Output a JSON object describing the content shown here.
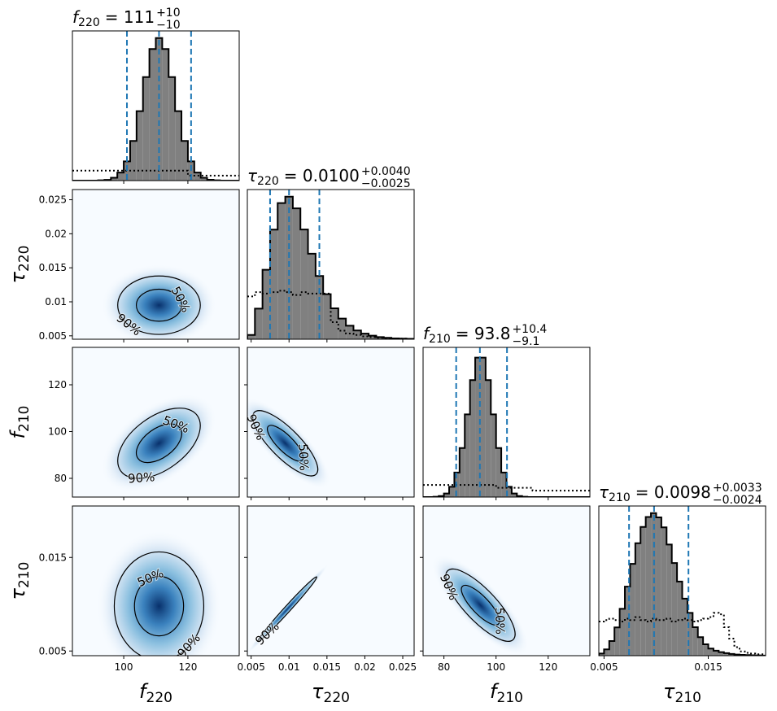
{
  "chart_data": {
    "type": "corner",
    "hist_color": "#808080",
    "line_color": "#1f77b4",
    "cmap": [
      "#f7fbff",
      "#c6dbef",
      "#6baed6",
      "#2171b5",
      "#08306b"
    ],
    "hist_ylim": [
      0,
      1.05
    ],
    "params": [
      {
        "symbol": "f",
        "sub": "220",
        "lim": [
          84,
          136
        ],
        "ticks": [
          100,
          120
        ],
        "title": {
          "body": "= 111",
          "plus": "+10",
          "minus": "−10"
        },
        "quantiles": [
          101,
          111,
          121
        ]
      },
      {
        "symbol": "τ",
        "sub": "220",
        "lim": [
          0.0045,
          0.0265
        ],
        "ticks": [
          0.005,
          0.01,
          0.015,
          0.02,
          0.025
        ],
        "title": {
          "body": "= 0.0100",
          "plus": "+0.0040",
          "minus": "−0.0025"
        },
        "quantiles": [
          0.0075,
          0.01,
          0.014
        ]
      },
      {
        "symbol": "f",
        "sub": "210",
        "lim": [
          72,
          136
        ],
        "ticks": [
          80,
          100,
          120
        ],
        "title": {
          "body": "= 93.8",
          "plus": "+10.4",
          "minus": "−9.1"
        },
        "quantiles": [
          84.7,
          93.8,
          104.2
        ]
      },
      {
        "symbol": "τ",
        "sub": "210",
        "lim": [
          0.0045,
          0.0205
        ],
        "ticks": [
          0.005,
          0.015
        ],
        "title": {
          "body": "= 0.0098",
          "plus": "+0.0033",
          "minus": "−0.0024"
        },
        "quantiles": [
          0.0074,
          0.0098,
          0.0131
        ]
      }
    ],
    "histograms": [
      {
        "bins": [
          84,
          86,
          88,
          90,
          92,
          94,
          96,
          98,
          100,
          102,
          104,
          106,
          108,
          110,
          112,
          114,
          116,
          118,
          120,
          122,
          124,
          126,
          128,
          130,
          132,
          134,
          136
        ],
        "counts": [
          0,
          0,
          0,
          0,
          0.002,
          0.005,
          0.02,
          0.056,
          0.135,
          0.278,
          0.487,
          0.726,
          0.923,
          1,
          0.923,
          0.726,
          0.487,
          0.278,
          0.135,
          0.056,
          0.02,
          0.006,
          0.002,
          0,
          0,
          0
        ],
        "prior": [
          0.07,
          0.07,
          0.07,
          0.07,
          0.07,
          0.07,
          0.07,
          0.07,
          0.07,
          0.07,
          0.07,
          0.07,
          0.07,
          0.07,
          0.07,
          0.07,
          0.07,
          0.07,
          0.035,
          0.035,
          0.035,
          0.035,
          0.035,
          0.035,
          0.035,
          0.035
        ]
      },
      {
        "bins": [
          0.0045,
          0.0055,
          0.0065,
          0.0075,
          0.0085,
          0.0095,
          0.0105,
          0.0115,
          0.0125,
          0.0135,
          0.0145,
          0.0155,
          0.0165,
          0.0175,
          0.0185,
          0.0195,
          0.0205,
          0.0215,
          0.0225,
          0.0235,
          0.0245,
          0.0255,
          0.0265
        ],
        "counts": [
          0.03,
          0.215,
          0.487,
          0.769,
          0.955,
          1,
          0.918,
          0.77,
          0.6,
          0.444,
          0.316,
          0.217,
          0.145,
          0.095,
          0.061,
          0.039,
          0.025,
          0.015,
          0.01,
          0.006,
          0.004,
          0.003
        ],
        "prior": [
          0.3,
          0.33,
          0.32,
          0.33,
          0.34,
          0.33,
          0.31,
          0.33,
          0.32,
          0.32,
          0.32,
          0.12,
          0.06,
          0.04,
          0.03,
          0.02,
          0.015,
          0.01,
          0.008,
          0.005,
          0.004,
          0.003
        ]
      },
      {
        "bins": [
          72,
          74,
          76,
          78,
          80,
          82,
          84,
          86,
          88,
          90,
          92,
          94,
          96,
          98,
          100,
          102,
          104,
          106,
          108,
          110,
          112,
          114,
          116,
          118,
          120,
          122,
          124,
          126,
          128,
          130,
          132,
          134,
          136
        ],
        "counts": [
          0,
          0,
          0.002,
          0.007,
          0.025,
          0.072,
          0.172,
          0.344,
          0.58,
          0.82,
          0.978,
          0.978,
          0.82,
          0.58,
          0.344,
          0.172,
          0.072,
          0.025,
          0.007,
          0.002,
          0,
          0,
          0,
          0,
          0,
          0,
          0,
          0,
          0,
          0,
          0,
          0
        ],
        "prior": [
          0.085,
          0.085,
          0.085,
          0.085,
          0.085,
          0.085,
          0.085,
          0.085,
          0.085,
          0.085,
          0.085,
          0.085,
          0.085,
          0.085,
          0.065,
          0.065,
          0.065,
          0.065,
          0.065,
          0.065,
          0.065,
          0.045,
          0.045,
          0.045,
          0.045,
          0.045,
          0.045,
          0.045,
          0.045,
          0.045,
          0.045,
          0.045
        ]
      },
      {
        "bins": [
          0.0045,
          0.005,
          0.0055,
          0.006,
          0.0065,
          0.007,
          0.0075,
          0.008,
          0.0085,
          0.009,
          0.0095,
          0.01,
          0.0105,
          0.011,
          0.0115,
          0.012,
          0.0125,
          0.013,
          0.0135,
          0.014,
          0.0145,
          0.015,
          0.0155,
          0.016,
          0.0165,
          0.017,
          0.0175,
          0.018,
          0.0185,
          0.019,
          0.0195,
          0.02,
          0.0205
        ],
        "counts": [
          0.015,
          0.044,
          0.103,
          0.198,
          0.329,
          0.484,
          0.644,
          0.789,
          0.903,
          0.973,
          1,
          0.97,
          0.9,
          0.78,
          0.65,
          0.52,
          0.4,
          0.3,
          0.2,
          0.13,
          0.08,
          0.05,
          0.035,
          0.025,
          0.018,
          0.012,
          0.008,
          0.006,
          0.004,
          0.003,
          0.002,
          0.001
        ],
        "prior": [
          0.24,
          0.25,
          0.26,
          0.25,
          0.24,
          0.26,
          0.25,
          0.27,
          0.25,
          0.24,
          0.26,
          0.25,
          0.25,
          0.26,
          0.24,
          0.25,
          0.26,
          0.25,
          0.24,
          0.25,
          0.26,
          0.27,
          0.3,
          0.29,
          0.2,
          0.12,
          0.06,
          0.03,
          0.02,
          0.015,
          0.01,
          0.01
        ]
      }
    ],
    "pairs": [
      {
        "x": 0,
        "y": 1,
        "mean": [
          111,
          0.0095
        ],
        "sd": [
          6,
          0.002
        ],
        "corr": 0,
        "levels": [
          {
            "value": 50,
            "label": "50%"
          },
          {
            "value": 90,
            "label": "90%"
          }
        ]
      },
      {
        "x": 0,
        "y": 2,
        "mean": [
          111,
          95
        ],
        "sd": [
          6,
          7
        ],
        "corr": 0.5,
        "levels": [
          {
            "value": 50,
            "label": "50%"
          },
          {
            "value": 90,
            "label": "90%"
          }
        ]
      },
      {
        "x": 0,
        "y": 3,
        "mean": [
          111,
          0.0098
        ],
        "sd": [
          6.5,
          0.0027
        ],
        "corr": 0,
        "levels": [
          {
            "value": 50,
            "label": "50%"
          },
          {
            "value": 90,
            "label": "90%"
          }
        ]
      },
      {
        "x": 1,
        "y": 2,
        "mean": [
          0.0095,
          95
        ],
        "sd": [
          0.002,
          6.5
        ],
        "corr": -0.8,
        "levels": [
          {
            "value": 50,
            "label": "50%"
          },
          {
            "value": 90,
            "label": "90%"
          }
        ]
      },
      {
        "x": 1,
        "y": 3,
        "mean": [
          0.0098,
          0.0095
        ],
        "sd": [
          0.0018,
          0.0016
        ],
        "corr": 0.99,
        "levels": [
          {
            "value": 90,
            "label": "90%"
          }
        ]
      },
      {
        "x": 2,
        "y": 3,
        "mean": [
          94,
          0.0099
        ],
        "sd": [
          6.2,
          0.0018
        ],
        "corr": -0.8,
        "levels": [
          {
            "value": 50,
            "label": "50%"
          },
          {
            "value": 90,
            "label": "90%"
          }
        ]
      }
    ]
  }
}
